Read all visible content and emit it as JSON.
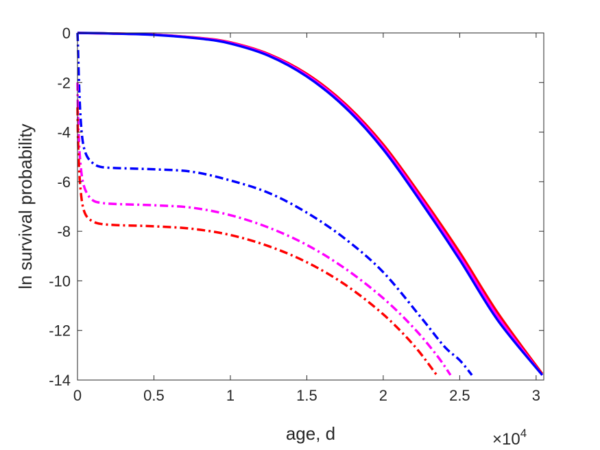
{
  "chart_data": {
    "type": "line",
    "title": "",
    "xlabel": "age, d",
    "ylabel": "ln survival probability",
    "x_exponent_label": "×10",
    "x_exponent_power": "4",
    "xlim": [
      0,
      30500
    ],
    "ylim": [
      -14,
      0
    ],
    "x_ticks": [
      0,
      5000,
      10000,
      15000,
      20000,
      25000,
      30000
    ],
    "x_tick_labels": [
      "0",
      "0.5",
      "1",
      "1.5",
      "2",
      "2.5",
      "3"
    ],
    "y_ticks": [
      0,
      -2,
      -4,
      -6,
      -8,
      -10,
      -12,
      -14
    ],
    "y_tick_labels": [
      "0",
      "-2",
      "-4",
      "-6",
      "-8",
      "-10",
      "-12",
      "-14"
    ],
    "grid": false,
    "legend": "none",
    "series": [
      {
        "color": "#ff0000",
        "style": "solid",
        "x": [
          0,
          2000,
          5000,
          8000,
          10000,
          12500,
          15000,
          17500,
          20000,
          22500,
          25000,
          27500,
          30400
        ],
        "y": [
          0,
          -0.02,
          -0.07,
          -0.2,
          -0.38,
          -0.85,
          -1.65,
          -2.85,
          -4.5,
          -6.6,
          -8.85,
          -11.3,
          -13.75
        ]
      },
      {
        "color": "#ff00ff",
        "style": "solid",
        "x": [
          0,
          2000,
          5000,
          8000,
          10000,
          12500,
          15000,
          17500,
          20000,
          22500,
          25000,
          27500,
          30400
        ],
        "y": [
          0,
          -0.02,
          -0.07,
          -0.21,
          -0.4,
          -0.88,
          -1.7,
          -2.92,
          -4.6,
          -6.72,
          -9.0,
          -11.45,
          -13.8
        ]
      },
      {
        "color": "#0000ff",
        "style": "solid",
        "x": [
          0,
          2000,
          5000,
          8000,
          10000,
          12500,
          15000,
          17500,
          20000,
          22500,
          25000,
          27500,
          30400
        ],
        "y": [
          0,
          -0.02,
          -0.08,
          -0.23,
          -0.43,
          -0.92,
          -1.76,
          -3.0,
          -4.7,
          -6.85,
          -9.15,
          -11.6,
          -13.8
        ]
      },
      {
        "color": "#0000ff",
        "style": "dashdot",
        "x": [
          0,
          30,
          100,
          200,
          350,
          600,
          1000,
          1500,
          2500,
          5000,
          7500,
          10000,
          12500,
          15000,
          17500,
          20000,
          22500,
          24000,
          25000,
          25800
        ],
        "y": [
          0,
          -0.5,
          -2.0,
          -3.4,
          -4.4,
          -4.95,
          -5.25,
          -5.4,
          -5.45,
          -5.5,
          -5.6,
          -5.95,
          -6.45,
          -7.25,
          -8.3,
          -9.65,
          -11.5,
          -12.65,
          -13.2,
          -13.8
        ]
      },
      {
        "color": "#ff00ff",
        "style": "dashdot",
        "x": [
          0,
          30,
          100,
          200,
          350,
          600,
          1000,
          1500,
          2500,
          5000,
          7500,
          10000,
          12500,
          15000,
          17500,
          20000,
          22000,
          23500,
          24400
        ],
        "y": [
          -2.0,
          -3.2,
          -4.4,
          -5.3,
          -6.0,
          -6.45,
          -6.75,
          -6.85,
          -6.9,
          -6.95,
          -7.05,
          -7.35,
          -7.85,
          -8.55,
          -9.5,
          -10.7,
          -11.9,
          -13.0,
          -13.8
        ]
      },
      {
        "color": "#ff0000",
        "style": "dashdot",
        "x": [
          0,
          30,
          100,
          200,
          350,
          600,
          1000,
          1500,
          2500,
          5000,
          7500,
          10000,
          12500,
          15000,
          17500,
          20000,
          22000,
          23500
        ],
        "y": [
          -3.0,
          -4.2,
          -5.4,
          -6.3,
          -7.0,
          -7.4,
          -7.6,
          -7.7,
          -7.75,
          -7.8,
          -7.9,
          -8.15,
          -8.6,
          -9.25,
          -10.15,
          -11.35,
          -12.6,
          -13.8
        ]
      }
    ]
  }
}
